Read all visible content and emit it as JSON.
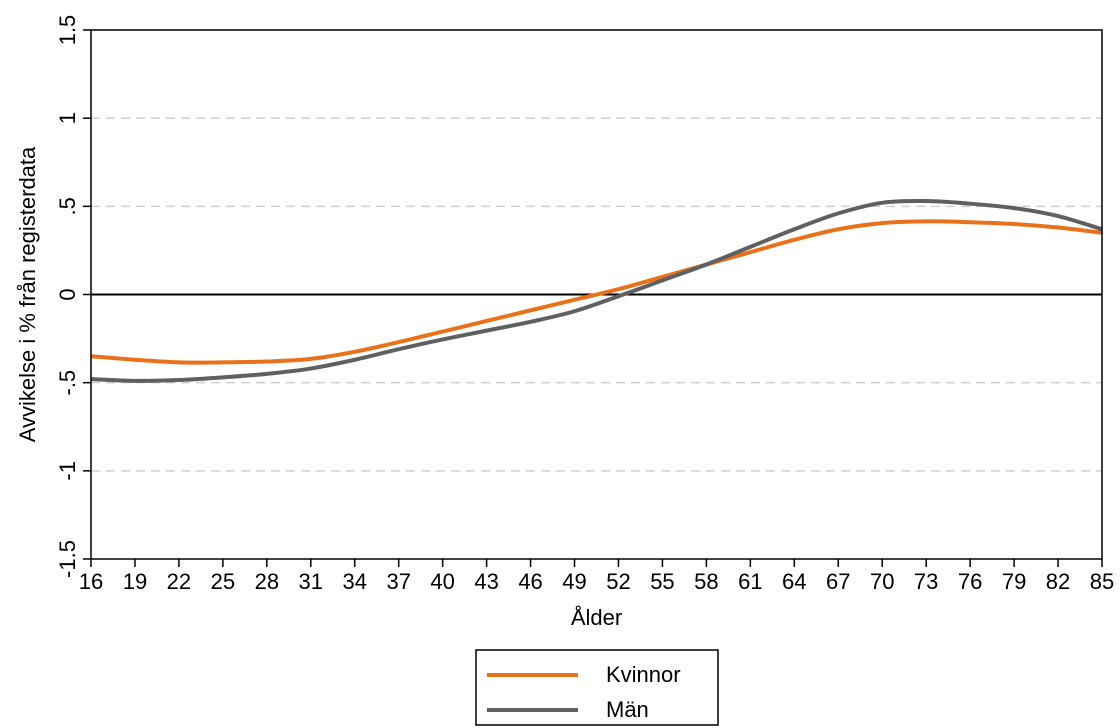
{
  "chart_data": {
    "type": "line",
    "title": "",
    "xlabel": "Ålder",
    "ylabel": "Avvikelse i % från registerdata",
    "xlim": [
      16,
      85
    ],
    "ylim": [
      -1.5,
      1.5
    ],
    "x_ticks": [
      16,
      19,
      22,
      25,
      28,
      31,
      34,
      37,
      40,
      43,
      46,
      49,
      52,
      55,
      58,
      61,
      64,
      67,
      70,
      73,
      76,
      79,
      82,
      85
    ],
    "y_ticks": [
      {
        "value": -1.5,
        "label": "-1.5"
      },
      {
        "value": -1,
        "label": "-1"
      },
      {
        "value": -0.5,
        "label": "-.5"
      },
      {
        "value": 0,
        "label": "0"
      },
      {
        "value": 0.5,
        "label": ".5"
      },
      {
        "value": 1,
        "label": "1"
      },
      {
        "value": 1.5,
        "label": "1.5"
      }
    ],
    "gridlines": [
      -1,
      -0.5,
      0.5,
      1
    ],
    "zero_line": 0,
    "legend_position": "bottom",
    "series": [
      {
        "name": "Kvinnor",
        "color": "#e8711a",
        "x": [
          16,
          19,
          22,
          25,
          28,
          31,
          34,
          37,
          40,
          43,
          46,
          49,
          52,
          55,
          58,
          61,
          64,
          67,
          70,
          73,
          76,
          79,
          82,
          85
        ],
        "y": [
          -0.35,
          -0.37,
          -0.385,
          -0.385,
          -0.38,
          -0.365,
          -0.325,
          -0.27,
          -0.21,
          -0.15,
          -0.09,
          -0.03,
          0.03,
          0.1,
          0.17,
          0.24,
          0.31,
          0.37,
          0.405,
          0.415,
          0.41,
          0.4,
          0.38,
          0.35
        ]
      },
      {
        "name": "Män",
        "color": "#5f6062",
        "x": [
          16,
          19,
          22,
          25,
          28,
          31,
          34,
          37,
          40,
          43,
          46,
          49,
          52,
          55,
          58,
          61,
          64,
          67,
          70,
          73,
          76,
          79,
          82,
          85
        ],
        "y": [
          -0.48,
          -0.49,
          -0.485,
          -0.47,
          -0.45,
          -0.42,
          -0.37,
          -0.31,
          -0.255,
          -0.205,
          -0.155,
          -0.095,
          -0.01,
          0.08,
          0.17,
          0.27,
          0.37,
          0.46,
          0.52,
          0.53,
          0.515,
          0.49,
          0.445,
          0.37
        ]
      }
    ]
  }
}
